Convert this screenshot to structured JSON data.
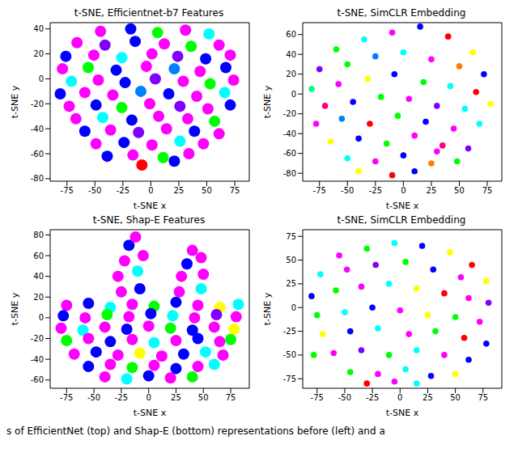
{
  "chart_data": [
    {
      "type": "scatter",
      "title": "t-SNE, Efficientnet-b7 Features",
      "x_label": "t-SNE x",
      "y_label": "t-SNE y",
      "xlim": [
        -90,
        88
      ],
      "ylim": [
        -82,
        45
      ],
      "xticks": [
        -75,
        -50,
        -25,
        0,
        25,
        50,
        75
      ],
      "yticks": [
        -80,
        -60,
        -40,
        -20,
        0,
        20,
        40
      ],
      "x": [
        -45,
        -18,
        6,
        31,
        52,
        -66,
        -41,
        -14,
        12,
        36,
        61,
        -76,
        -51,
        -26,
        1,
        24,
        49,
        71,
        -79,
        -56,
        -31,
        -4,
        21,
        44,
        67,
        -71,
        -47,
        -23,
        4,
        29,
        53,
        74,
        -81,
        -59,
        -34,
        -9,
        16,
        41,
        66,
        -73,
        -49,
        -26,
        -1,
        26,
        51,
        71,
        -67,
        -43,
        -17,
        7,
        33,
        57,
        -59,
        -36,
        -11,
        14,
        39,
        61,
        -49,
        -24,
        1,
        26,
        47,
        -39,
        -16,
        11,
        34,
        -8,
        21
      ],
      "y": [
        38,
        40,
        37,
        39,
        36,
        29,
        27,
        30,
        28,
        26,
        27,
        18,
        19,
        17,
        20,
        18,
        16,
        19,
        8,
        9,
        7,
        10,
        8,
        6,
        9,
        -2,
        -1,
        -3,
        0,
        -2,
        -4,
        -1,
        -12,
        -11,
        -13,
        -10,
        -12,
        -14,
        -11,
        -22,
        -21,
        -23,
        -20,
        -22,
        -24,
        -21,
        -32,
        -31,
        -33,
        -30,
        -32,
        -34,
        -42,
        -41,
        -43,
        -40,
        -42,
        -44,
        -52,
        -51,
        -53,
        -50,
        -52,
        -62,
        -61,
        -63,
        -60,
        -69,
        -66
      ],
      "colors": [
        "#ff00ff",
        "#0000ff",
        "#00ff00",
        "#ff00ff",
        "#00ffff",
        "#ff00ff",
        "#8000ff",
        "#0000ff",
        "#ff00ff",
        "#00ff00",
        "#ff00ff",
        "#0000ff",
        "#ff00ff",
        "#00ffff",
        "#ff00ff",
        "#8000ff",
        "#0000ff",
        "#ff00ff",
        "#ff00ff",
        "#00ff00",
        "#0000ff",
        "#ff00ff",
        "#0080ff",
        "#ff00ff",
        "#0000ff",
        "#00ffff",
        "#ff00ff",
        "#0000ff",
        "#8000ff",
        "#ff00ff",
        "#00ff00",
        "#ff00ff",
        "#0000ff",
        "#ff00ff",
        "#ff00ff",
        "#0080ff",
        "#0000ff",
        "#ff00ff",
        "#00ffff",
        "#ff00ff",
        "#0000ff",
        "#00ff00",
        "#ff00ff",
        "#8000ff",
        "#ff00ff",
        "#0000ff",
        "#ff00ff",
        "#00ffff",
        "#0000ff",
        "#ff00ff",
        "#ff00ff",
        "#00ff00",
        "#0000ff",
        "#ff00ff",
        "#8000ff",
        "#ff00ff",
        "#0000ff",
        "#ff00ff",
        "#ff00ff",
        "#0000ff",
        "#ff00ff",
        "#00ffff",
        "#ff00ff",
        "#0000ff",
        "#ff00ff",
        "#00ff00",
        "#ff00ff",
        "#ff0000",
        "#0000ff"
      ]
    },
    {
      "type": "scatter",
      "title": "t-SNE, SimCLR Embedding",
      "x_label": "t-SNE x",
      "y_label": "t-SNE y",
      "xlim": [
        -90,
        88
      ],
      "ylim": [
        -88,
        72
      ],
      "xticks": [
        -75,
        -50,
        -25,
        0,
        25,
        50,
        75
      ],
      "yticks": [
        -80,
        -60,
        -40,
        -20,
        0,
        20,
        40,
        60
      ],
      "x": [
        -60,
        -35,
        -10,
        15,
        40,
        62,
        -75,
        -50,
        -25,
        0,
        25,
        50,
        72,
        -82,
        -58,
        -32,
        -8,
        18,
        42,
        65,
        -70,
        -45,
        -20,
        5,
        30,
        55,
        78,
        -78,
        -55,
        -30,
        -5,
        20,
        45,
        68,
        -65,
        -40,
        -15,
        10,
        35,
        58,
        -50,
        -25,
        0,
        25,
        48,
        -10,
        10,
        -40,
        30
      ],
      "y": [
        45,
        55,
        62,
        68,
        58,
        42,
        25,
        30,
        38,
        42,
        35,
        28,
        20,
        5,
        10,
        15,
        20,
        12,
        8,
        2,
        -12,
        -8,
        -3,
        -5,
        -12,
        -15,
        -10,
        -30,
        -25,
        -30,
        -22,
        -28,
        -35,
        -30,
        -48,
        -45,
        -50,
        -42,
        -52,
        -55,
        -65,
        -68,
        -62,
        -70,
        -68,
        -82,
        -78,
        -78,
        -58
      ],
      "colors": [
        "#00ff00",
        "#00ffff",
        "#ff00ff",
        "#0000ff",
        "#ff0000",
        "#ffff00",
        "#8000ff",
        "#00ff00",
        "#0080ff",
        "#00ffff",
        "#ff00ff",
        "#ff8000",
        "#0000ff",
        "#00ff80",
        "#ff00ff",
        "#ffff00",
        "#0000ff",
        "#00ff00",
        "#00ffff",
        "#ff0000",
        "#ff0080",
        "#0000ff",
        "#00ff00",
        "#ff00ff",
        "#8000ff",
        "#00ffff",
        "#ffff00",
        "#ff00ff",
        "#0080ff",
        "#ff0000",
        "#00ff00",
        "#0000ff",
        "#ff00ff",
        "#00ffff",
        "#ffff00",
        "#0000ff",
        "#00ff00",
        "#ff00ff",
        "#ff0080",
        "#8000ff",
        "#00ffff",
        "#ff00ff",
        "#0000ff",
        "#ff8000",
        "#00ff00",
        "#ff0000",
        "#0000ff",
        "#ffff00",
        "#ff00ff"
      ]
    },
    {
      "type": "scatter",
      "title": "t-SNE, Shap-E Features",
      "x_label": "t-SNE x",
      "y_label": "t-SNE y",
      "xlim": [
        -90,
        92
      ],
      "ylim": [
        -68,
        85
      ],
      "xticks": [
        -75,
        -50,
        -25,
        0,
        25,
        50,
        75
      ],
      "yticks": [
        -60,
        -40,
        -20,
        0,
        20,
        40,
        60,
        80
      ],
      "x": [
        -75,
        -55,
        -35,
        -15,
        5,
        25,
        45,
        65,
        82,
        -78,
        -58,
        -38,
        -18,
        2,
        22,
        42,
        62,
        80,
        -80,
        -60,
        -40,
        -20,
        0,
        20,
        40,
        60,
        78,
        -75,
        -55,
        -35,
        -15,
        5,
        25,
        45,
        65,
        75,
        -68,
        -48,
        -28,
        -8,
        12,
        32,
        52,
        68,
        -55,
        -35,
        -15,
        5,
        25,
        45,
        60,
        -40,
        -20,
        0,
        20,
        40,
        -25,
        -8,
        -28,
        -10,
        -22,
        -5,
        -18,
        -12,
        28,
        48,
        30,
        50,
        35,
        48,
        40
      ],
      "y": [
        12,
        14,
        10,
        13,
        11,
        15,
        12,
        10,
        13,
        2,
        0,
        3,
        1,
        4,
        2,
        0,
        3,
        1,
        -10,
        -12,
        -9,
        -11,
        -8,
        -10,
        -12,
        -9,
        -11,
        -22,
        -20,
        -23,
        -21,
        -24,
        -22,
        -20,
        -23,
        -21,
        -35,
        -33,
        -36,
        -34,
        -37,
        -35,
        -33,
        -36,
        -47,
        -45,
        -48,
        -46,
        -49,
        -47,
        -45,
        -57,
        -59,
        -56,
        -58,
        -57,
        25,
        28,
        40,
        45,
        55,
        60,
        70,
        78,
        25,
        28,
        40,
        42,
        52,
        58,
        65
      ],
      "colors": [
        "#ff00ff",
        "#0000ff",
        "#00ffff",
        "#ff00ff",
        "#00ff00",
        "#0000ff",
        "#ff00ff",
        "#ffff00",
        "#00ffff",
        "#0000ff",
        "#ff00ff",
        "#00ff00",
        "#ff00ff",
        "#0000ff",
        "#00ffff",
        "#ff00ff",
        "#8000ff",
        "#ff00ff",
        "#ff00ff",
        "#00ffff",
        "#ff00ff",
        "#0000ff",
        "#ff00ff",
        "#00ff00",
        "#0000ff",
        "#ff00ff",
        "#ffff00",
        "#00ff00",
        "#ff00ff",
        "#0000ff",
        "#ff00ff",
        "#00ffff",
        "#ff00ff",
        "#0000ff",
        "#ff00ff",
        "#00ff00",
        "#ff00ff",
        "#0000ff",
        "#ff00ff",
        "#ffff00",
        "#ff00ff",
        "#0000ff",
        "#00ffff",
        "#ff00ff",
        "#0000ff",
        "#ff00ff",
        "#00ff00",
        "#ff00ff",
        "#0000ff",
        "#ff00ff",
        "#00ffff",
        "#ff00ff",
        "#00ffff",
        "#0000ff",
        "#ff00ff",
        "#00ff00",
        "#ff00ff",
        "#0000ff",
        "#ff00ff",
        "#00ffff",
        "#ff00ff",
        "#ff00ff",
        "#0000ff",
        "#ff00ff",
        "#ff00ff",
        "#00ffff",
        "#ff00ff",
        "#ff00ff",
        "#0000ff",
        "#ff00ff",
        "#ff00ff"
      ]
    },
    {
      "type": "scatter",
      "title": "t-SNE, SimCLR Embedding",
      "x_label": "t-SNE x",
      "y_label": "t-SNE y",
      "xlim": [
        -88,
        92
      ],
      "ylim": [
        -85,
        82
      ],
      "xticks": [
        -75,
        -50,
        -25,
        0,
        25,
        50,
        75
      ],
      "yticks": [
        -75,
        -50,
        -25,
        0,
        25,
        50,
        75
      ],
      "x": [
        -55,
        -30,
        -5,
        20,
        45,
        65,
        -72,
        -48,
        -22,
        5,
        30,
        55,
        78,
        -80,
        -58,
        -35,
        -10,
        15,
        40,
        62,
        80,
        -75,
        -50,
        -25,
        0,
        25,
        50,
        72,
        -70,
        -45,
        -20,
        8,
        32,
        58,
        78,
        -60,
        -35,
        -10,
        15,
        40,
        62,
        -45,
        -20,
        5,
        28,
        50,
        -30,
        -5,
        15,
        -78
      ],
      "y": [
        55,
        62,
        68,
        65,
        58,
        45,
        35,
        40,
        45,
        48,
        40,
        32,
        28,
        12,
        18,
        22,
        25,
        20,
        15,
        10,
        5,
        -8,
        -5,
        0,
        -3,
        -8,
        -10,
        -15,
        -28,
        -25,
        -22,
        -28,
        -25,
        -32,
        -38,
        -48,
        -45,
        -50,
        -45,
        -50,
        -55,
        -68,
        -70,
        -65,
        -72,
        -70,
        -80,
        -78,
        -80,
        -50
      ],
      "colors": [
        "#ff00ff",
        "#00ff00",
        "#00ffff",
        "#0000ff",
        "#ffff00",
        "#ff0000",
        "#00ffff",
        "#ff00ff",
        "#8000ff",
        "#00ff00",
        "#0000ff",
        "#ff00ff",
        "#ffff00",
        "#0000ff",
        "#00ff00",
        "#ff00ff",
        "#00ffff",
        "#ffff00",
        "#ff0000",
        "#ff00ff",
        "#8000ff",
        "#00ff00",
        "#00ffff",
        "#0000ff",
        "#ff00ff",
        "#ffff00",
        "#00ff00",
        "#ff00ff",
        "#ffff00",
        "#0000ff",
        "#00ffff",
        "#ff00ff",
        "#00ff00",
        "#ff0000",
        "#0000ff",
        "#ff00ff",
        "#8000ff",
        "#00ff00",
        "#00ffff",
        "#ff00ff",
        "#0000ff",
        "#00ff00",
        "#ff00ff",
        "#00ffff",
        "#0000ff",
        "#ffff00",
        "#ff0000",
        "#ff00ff",
        "#00ffff",
        "#00ff00"
      ]
    }
  ],
  "caption": "s of EfficientNet (top) and Shap-E (bottom) representations before (left) and a"
}
